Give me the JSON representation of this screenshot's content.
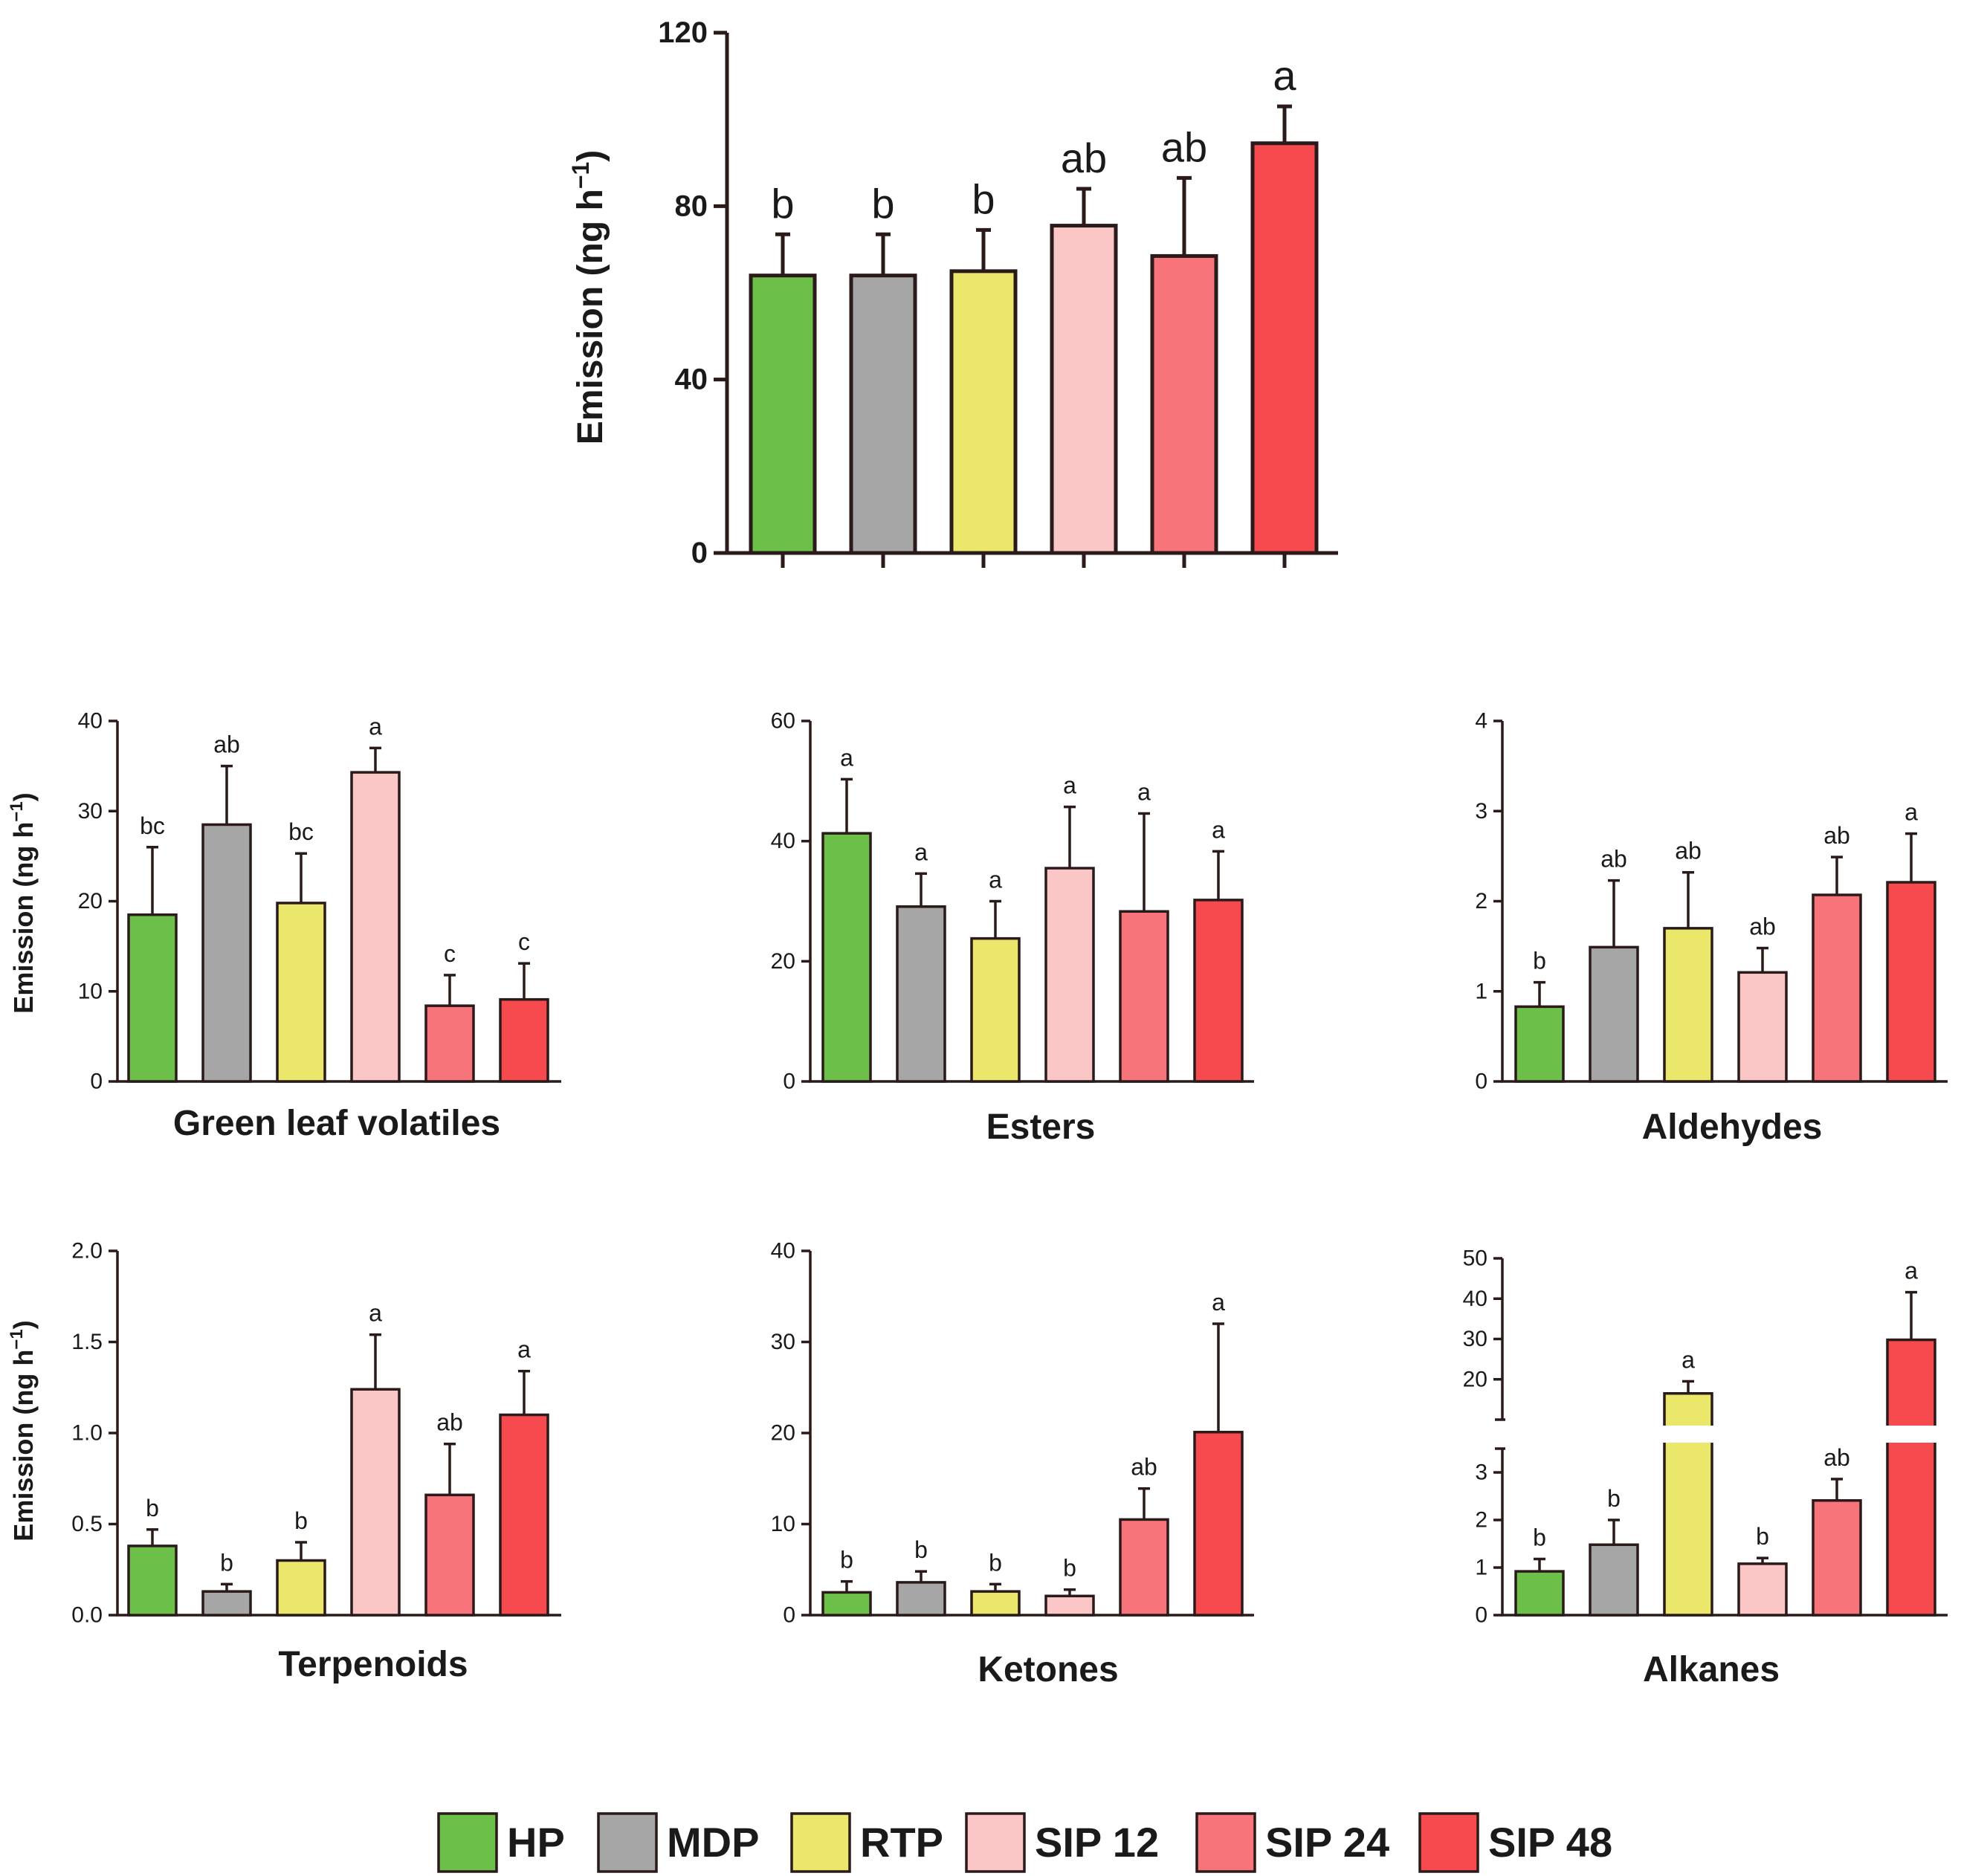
{
  "legend": [
    {
      "label": "HP",
      "color": "#6cc04a"
    },
    {
      "label": "MDP",
      "color": "#a6a6a6"
    },
    {
      "label": "RTP",
      "color": "#ebe76a"
    },
    {
      "label": "SIP 12",
      "color": "#fbc6c6"
    },
    {
      "label": "SIP 24",
      "color": "#f7757a"
    },
    {
      "label": "SIP 48",
      "color": "#f74a4e"
    }
  ],
  "chart_data": [
    {
      "id": "total",
      "type": "bar",
      "title": "",
      "ylabel": "Emission (ng h",
      "ylabel_sup": "−1",
      "ylabel_close": ")",
      "ylim": [
        0,
        120
      ],
      "yticks": [
        0,
        40,
        80,
        120
      ],
      "tick_labels": [
        "0",
        "40",
        "80",
        "120"
      ],
      "categories": [
        "HP",
        "MDP",
        "RTP",
        "SIP 12",
        "SIP 24",
        "SIP 48"
      ],
      "values": [
        64,
        64,
        65,
        75.5,
        68.5,
        94.5
      ],
      "errors": [
        9.5,
        9.5,
        9.5,
        8.5,
        18,
        8.5
      ],
      "letters": [
        "b",
        "b",
        "b",
        "ab",
        "ab",
        "a"
      ]
    },
    {
      "id": "glv",
      "type": "bar",
      "title": "Green leaf volatiles",
      "ylabel": "Emission (ng h",
      "ylabel_sup": "−1",
      "ylabel_close": ")",
      "ylim": [
        0,
        40
      ],
      "yticks": [
        0,
        10,
        20,
        30,
        40
      ],
      "tick_labels": [
        "0",
        "10",
        "20",
        "30",
        "40"
      ],
      "categories": [
        "HP",
        "MDP",
        "RTP",
        "SIP 12",
        "SIP 24",
        "SIP 48"
      ],
      "values": [
        18.5,
        28.5,
        19.8,
        34.3,
        8.4,
        9.1
      ],
      "errors": [
        7.5,
        6.5,
        5.5,
        2.7,
        3.4,
        4.0
      ],
      "letters": [
        "bc",
        "ab",
        "bc",
        "a",
        "c",
        "c"
      ]
    },
    {
      "id": "esters",
      "type": "bar",
      "title": "Esters",
      "ylabel": "",
      "ylim": [
        0,
        60
      ],
      "yticks": [
        0,
        20,
        40,
        60
      ],
      "tick_labels": [
        "0",
        "20",
        "40",
        "60"
      ],
      "categories": [
        "HP",
        "MDP",
        "RTP",
        "SIP 12",
        "SIP 24",
        "SIP 48"
      ],
      "values": [
        41.3,
        29.1,
        23.8,
        35.5,
        28.3,
        30.2
      ],
      "errors": [
        9.0,
        5.5,
        6.2,
        10.2,
        16.3,
        8.1
      ],
      "letters": [
        "a",
        "a",
        "a",
        "a",
        "a",
        "a"
      ]
    },
    {
      "id": "aldehydes",
      "type": "bar",
      "title": "Aldehydes",
      "ylabel": "",
      "ylim": [
        0,
        4
      ],
      "yticks": [
        0,
        1,
        2,
        3,
        4
      ],
      "tick_labels": [
        "0",
        "1",
        "2",
        "3",
        "4"
      ],
      "categories": [
        "HP",
        "MDP",
        "RTP",
        "SIP 12",
        "SIP 24",
        "SIP 48"
      ],
      "values": [
        0.83,
        1.49,
        1.7,
        1.21,
        2.07,
        2.21
      ],
      "errors": [
        0.27,
        0.74,
        0.62,
        0.27,
        0.42,
        0.54
      ],
      "letters": [
        "b",
        "ab",
        "ab",
        "ab",
        "ab",
        "a"
      ]
    },
    {
      "id": "terpenoids",
      "type": "bar",
      "title": "Terpenoids",
      "ylabel": "Emission (ng h",
      "ylabel_sup": "−1",
      "ylabel_close": ")",
      "ylim": [
        0,
        2
      ],
      "yticks": [
        0,
        0.5,
        1,
        1.5,
        2
      ],
      "tick_labels": [
        "0.0",
        "0.5",
        "1.0",
        "1.5",
        "2.0"
      ],
      "categories": [
        "HP",
        "MDP",
        "RTP",
        "SIP 12",
        "SIP 24",
        "SIP 48"
      ],
      "values": [
        0.38,
        0.13,
        0.3,
        1.24,
        0.66,
        1.1
      ],
      "errors": [
        0.09,
        0.04,
        0.1,
        0.3,
        0.28,
        0.24
      ],
      "letters": [
        "b",
        "b",
        "b",
        "a",
        "ab",
        "a"
      ]
    },
    {
      "id": "ketones",
      "type": "bar",
      "title": "Ketones",
      "ylabel": "",
      "ylim": [
        0,
        40
      ],
      "yticks": [
        0,
        10,
        20,
        30,
        40
      ],
      "tick_labels": [
        "0",
        "10",
        "20",
        "30",
        "40"
      ],
      "categories": [
        "HP",
        "MDP",
        "RTP",
        "SIP 12",
        "SIP 24",
        "SIP 48"
      ],
      "values": [
        2.5,
        3.6,
        2.6,
        2.1,
        10.5,
        20.1
      ],
      "errors": [
        1.2,
        1.2,
        0.8,
        0.7,
        3.4,
        11.9
      ],
      "letters": [
        "b",
        "b",
        "b",
        "b",
        "ab",
        "a"
      ]
    },
    {
      "id": "alkanes",
      "type": "bar",
      "title": "Alkanes",
      "broken_axis": true,
      "ylabel": "",
      "lower_range": [
        0,
        3.5
      ],
      "lower_ticks": [
        0,
        1,
        2,
        3
      ],
      "lower_tick_labels": [
        "0",
        "1",
        "2",
        "3"
      ],
      "upper_range": [
        10,
        50
      ],
      "upper_ticks": [
        20,
        30,
        40,
        50
      ],
      "upper_tick_labels": [
        "20",
        "30",
        "40",
        "50"
      ],
      "categories": [
        "HP",
        "MDP",
        "RTP",
        "SIP 12",
        "SIP 24",
        "SIP 48"
      ],
      "values": [
        0.92,
        1.48,
        16.5,
        1.08,
        2.41,
        29.8
      ],
      "errors": [
        0.26,
        0.52,
        3.0,
        0.12,
        0.45,
        11.8
      ],
      "letters": [
        "b",
        "b",
        "a",
        "b",
        "ab",
        "a"
      ]
    }
  ]
}
